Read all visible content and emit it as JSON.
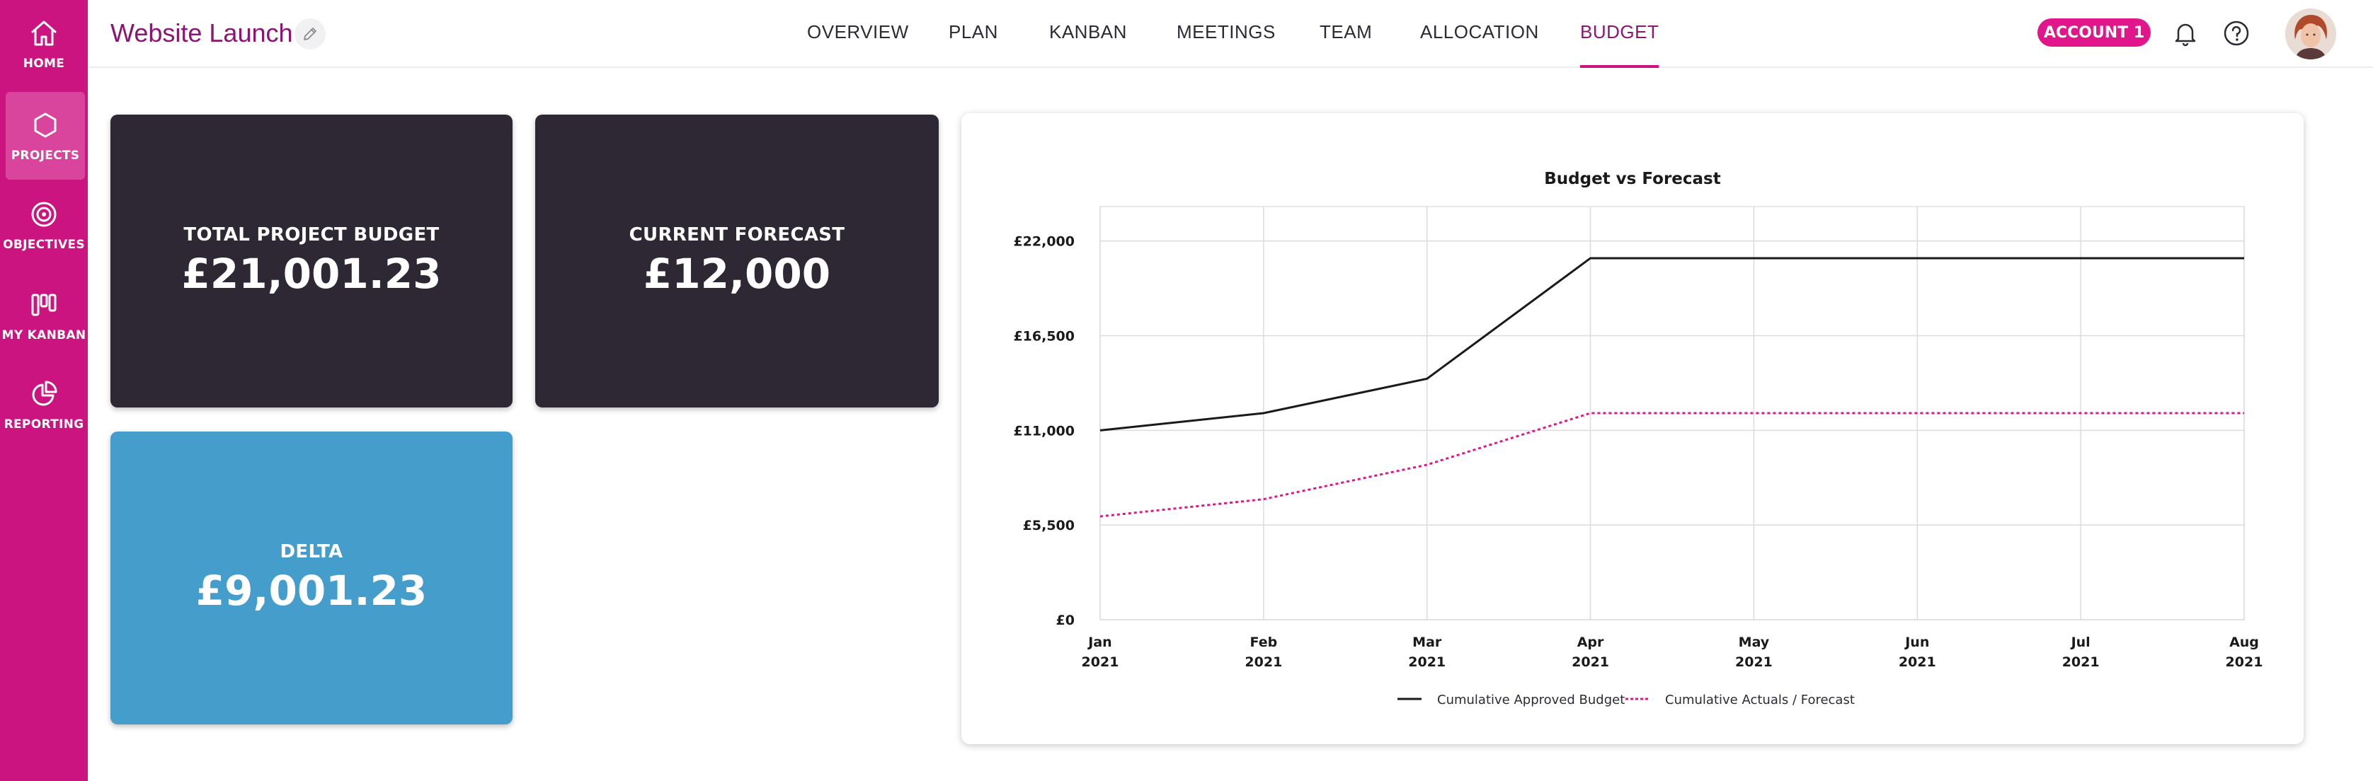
{
  "sidebar": {
    "items": [
      {
        "label": "HOME",
        "icon": "home-icon"
      },
      {
        "label": "PROJECTS",
        "icon": "hexagon-icon"
      },
      {
        "label": "OBJECTIVES",
        "icon": "target-icon"
      },
      {
        "label": "MY KANBAN",
        "icon": "kanban-icon"
      },
      {
        "label": "REPORTING",
        "icon": "pie-chart-icon"
      }
    ],
    "active": "PROJECTS"
  },
  "header": {
    "title": "Website Launch",
    "tabs": [
      "OVERVIEW",
      "PLAN",
      "KANBAN",
      "MEETINGS",
      "TEAM",
      "ALLOCATION",
      "BUDGET"
    ],
    "active_tab": "BUDGET",
    "account_label": "ACCOUNT 1"
  },
  "cards": {
    "total_budget": {
      "label": "TOTAL PROJECT BUDGET",
      "value": "£21,001.23"
    },
    "current_forecast": {
      "label": "CURRENT FORECAST",
      "value": "£12,000"
    },
    "delta": {
      "label": "DELTA",
      "value": "£9,001.23"
    }
  },
  "colors": {
    "brand": "#cc1480",
    "title": "#8c1573",
    "card_dark": "#2d2833",
    "card_blue": "#459dcc",
    "series_budget": "#1a1a1a",
    "series_forecast": "#e0168a"
  },
  "chart_data": {
    "type": "line",
    "title": "Budget vs Forecast",
    "categories": [
      [
        "Jan",
        "2021"
      ],
      [
        "Feb",
        "2021"
      ],
      [
        "Mar",
        "2021"
      ],
      [
        "Apr",
        "2021"
      ],
      [
        "May",
        "2021"
      ],
      [
        "Jun",
        "2021"
      ],
      [
        "Jul",
        "2021"
      ],
      [
        "Aug",
        "2021"
      ]
    ],
    "y_ticks": [
      0,
      5500,
      11000,
      16500,
      22000
    ],
    "y_tick_labels": [
      "£0",
      "£5,500",
      "£11,000",
      "£16,500",
      "£22,000"
    ],
    "ylim": [
      0,
      24000
    ],
    "series": [
      {
        "name": "Cumulative Approved Budget",
        "style": "solid",
        "values": [
          11000,
          12000,
          14000,
          21001.23,
          21001.23,
          21001.23,
          21001.23,
          21001.23
        ]
      },
      {
        "name": "Cumulative Actuals / Forecast",
        "style": "dotted",
        "values": [
          6000,
          7000,
          9000,
          12000,
          12000,
          12000,
          12000,
          12000
        ]
      }
    ],
    "legend_position": "bottom",
    "grid": true
  }
}
